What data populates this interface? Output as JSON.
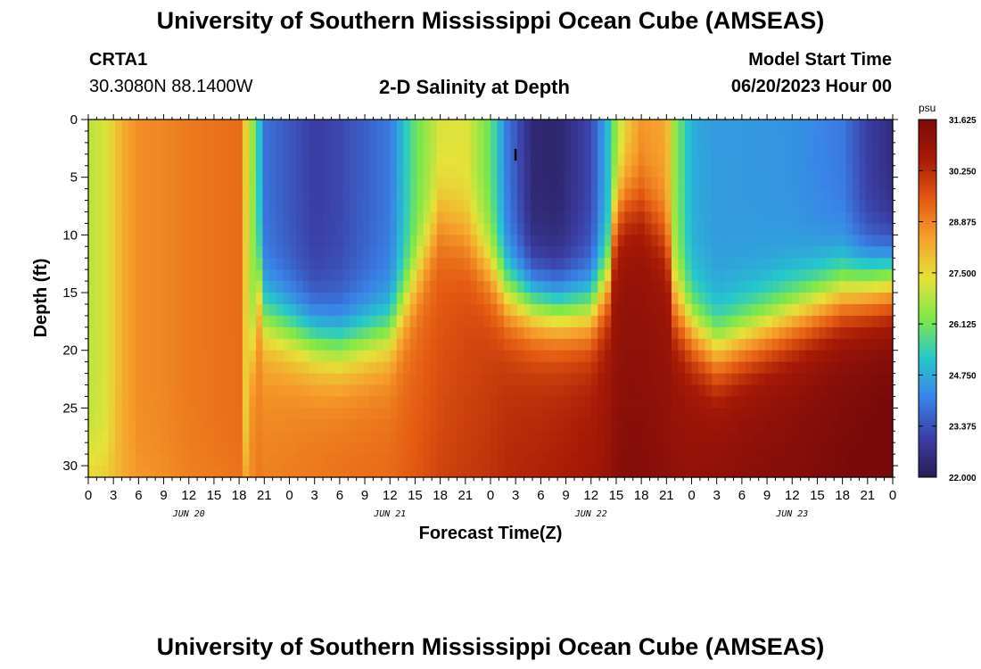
{
  "header": {
    "title": "University of Southern Mississippi Ocean Cube (AMSEAS)",
    "station": "CRTA1",
    "coords": "30.3080N  88.1400W",
    "plot_title": "2-D Salinity at Depth",
    "model_start_label": "Model Start Time",
    "model_start_value": "06/20/2023 Hour 00"
  },
  "footer": {
    "title": "University of Southern Mississippi Ocean Cube (AMSEAS)"
  },
  "colors": {
    "colormap": [
      "#2a1b55",
      "#3b3fa6",
      "#3a82e8",
      "#25c8cc",
      "#7ee84a",
      "#e6e239",
      "#f6a02c",
      "#e45a12",
      "#a81a06",
      "#7a0a0a"
    ]
  },
  "chart_data": {
    "type": "heatmap",
    "title": "2-D Salinity at Depth",
    "xlabel": "Forecast Time(Z)",
    "ylabel": "Depth (ft)",
    "x_hours_range": [
      0,
      96
    ],
    "x_step_hours": 3,
    "x_tick_labels": [
      "0",
      "3",
      "6",
      "9",
      "12",
      "15",
      "18",
      "21",
      "0",
      "3",
      "6",
      "9",
      "12",
      "15",
      "18",
      "21",
      "0",
      "3",
      "6",
      "9",
      "12",
      "15",
      "18",
      "21",
      "0",
      "3",
      "6",
      "9",
      "12",
      "15",
      "18",
      "21",
      "0"
    ],
    "x_date_labels": [
      {
        "hour": 12,
        "text": "JUN 20"
      },
      {
        "hour": 36,
        "text": "JUN 21"
      },
      {
        "hour": 60,
        "text": "JUN 22"
      },
      {
        "hour": 84,
        "text": "JUN 23"
      }
    ],
    "y_range": [
      0,
      31
    ],
    "y_ticks": [
      0,
      5,
      10,
      15,
      20,
      25,
      30
    ],
    "y_tick_labels": [
      "0",
      "5",
      "10",
      "15",
      "20",
      "25",
      "30"
    ],
    "colorbar": {
      "unit": "psu",
      "min": 22.0,
      "max": 31.625,
      "tick_values": [
        31.625,
        30.25,
        28.875,
        27.5,
        26.125,
        24.75,
        23.375,
        22.0
      ],
      "tick_labels": [
        "31.625",
        "30.250",
        "28.875",
        "27.500",
        "26.125",
        "24.750",
        "23.375",
        "22.000"
      ]
    },
    "grid": false,
    "marker": {
      "hour": 51,
      "depth": 3,
      "symbol": "I"
    },
    "profile_hours": [
      0,
      2,
      4,
      6,
      9,
      12,
      15,
      18,
      19,
      20,
      21,
      27,
      30,
      36,
      39,
      42,
      45,
      48,
      50,
      53,
      56,
      60,
      62,
      63,
      64,
      66,
      69,
      70,
      72,
      75,
      78,
      84,
      90,
      93,
      96
    ],
    "profile_surface": [
      26.9,
      27.2,
      28.2,
      28.7,
      28.8,
      29.0,
      29.1,
      29.2,
      27.3,
      26.0,
      23.9,
      23.0,
      23.2,
      24.0,
      26.0,
      27.2,
      27.3,
      26.0,
      24.0,
      22.4,
      22.3,
      23.2,
      25.0,
      26.5,
      27.5,
      28.5,
      28.3,
      26.5,
      24.8,
      24.5,
      24.5,
      24.4,
      24.0,
      23.0,
      22.5
    ],
    "profile_mix_depth": [
      30.5,
      30.5,
      30.5,
      30.5,
      30.5,
      30.5,
      30.5,
      30.5,
      30.5,
      13.0,
      17.0,
      19.0,
      19.5,
      18.5,
      14.0,
      8.5,
      10.0,
      13.0,
      15.0,
      16.0,
      16.5,
      16.5,
      14.0,
      8.0,
      7.0,
      7.0,
      10.0,
      16.0,
      18.0,
      20.0,
      19.0,
      17.0,
      15.0,
      14.5,
      14.0
    ],
    "profile_deep": [
      28.0,
      28.0,
      28.2,
      28.4,
      28.6,
      28.8,
      28.9,
      29.0,
      28.8,
      28.7,
      28.6,
      28.8,
      28.9,
      29.0,
      29.2,
      29.4,
      29.6,
      29.8,
      30.0,
      30.1,
      30.2,
      30.4,
      30.6,
      30.8,
      30.9,
      30.9,
      30.8,
      30.8,
      30.8,
      30.9,
      31.0,
      31.1,
      31.3,
      31.4,
      31.5
    ]
  }
}
